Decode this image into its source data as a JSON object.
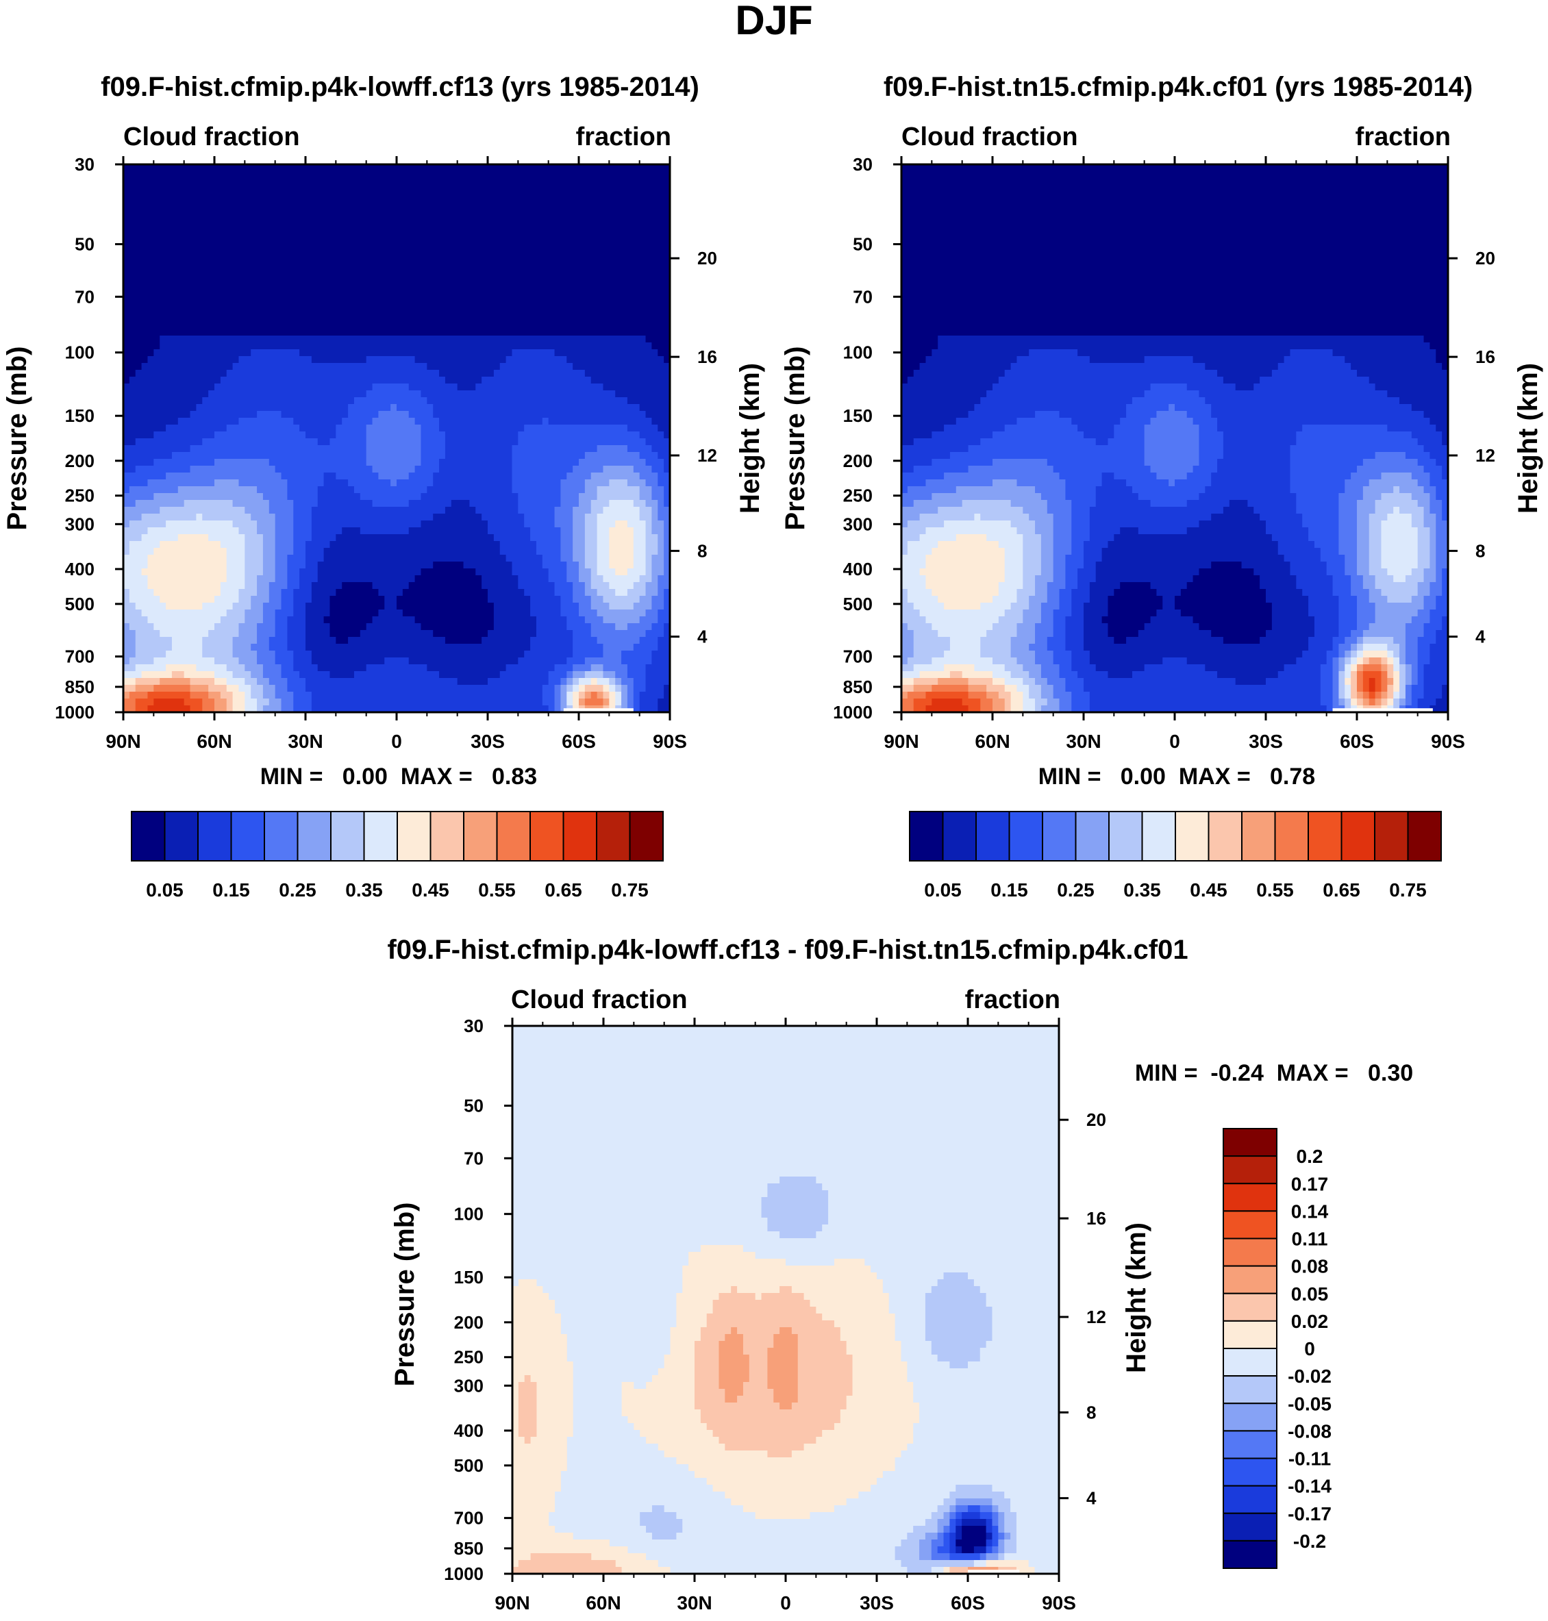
{
  "figure": {
    "title": "DJF"
  },
  "palettes": {
    "abs": [
      "#00007f",
      "#0a1fb4",
      "#1a3bdc",
      "#2d55f0",
      "#5478f5",
      "#86a2f5",
      "#b4c8f9",
      "#dce9fc",
      "#fdebd8",
      "#fbc6ad",
      "#f7a079",
      "#f47a4c",
      "#ef5322",
      "#e0330e",
      "#b5200a",
      "#7e0000"
    ],
    "diff": [
      "#00007f",
      "#0a1fb4",
      "#1a3bdc",
      "#2d55f0",
      "#5478f5",
      "#86a2f5",
      "#b4c8f9",
      "#dce9fc",
      "#fdebd8",
      "#fbc6ad",
      "#f7a079",
      "#f47a4c",
      "#ef5322",
      "#e0330e",
      "#b5200a",
      "#7e0000"
    ]
  },
  "panels": [
    {
      "title": "f09.F-hist.cfmip.p4k-lowff.cf13 (yrs 1985-2014)",
      "left_label": "Cloud fraction",
      "right_label": "fraction",
      "stats": "MIN =   0.00  MAX =   0.83",
      "ylabel_left": "Pressure (mb)",
      "ylabel_right": "Height (km)",
      "colorbar_labels": [
        "0.05",
        "0.15",
        "0.25",
        "0.35",
        "0.45",
        "0.55",
        "0.65",
        "0.75"
      ]
    },
    {
      "title": "f09.F-hist.tn15.cfmip.p4k.cf01 (yrs 1985-2014)",
      "left_label": "Cloud fraction",
      "right_label": "fraction",
      "stats": "MIN =   0.00  MAX =   0.78",
      "ylabel_left": "Pressure (mb)",
      "ylabel_right": "Height (km)",
      "colorbar_labels": [
        "0.05",
        "0.15",
        "0.25",
        "0.35",
        "0.45",
        "0.55",
        "0.65",
        "0.75"
      ]
    },
    {
      "title": "f09.F-hist.cfmip.p4k-lowff.cf13 - f09.F-hist.tn15.cfmip.p4k.cf01",
      "left_label": "Cloud fraction",
      "right_label": "fraction",
      "stats": "MIN =  -0.24  MAX =   0.30",
      "ylabel_left": "Pressure (mb)",
      "ylabel_right": "Height (km)",
      "colorbar_labels": [
        "0.2",
        "0.17",
        "0.14",
        "0.11",
        "0.08",
        "0.05",
        "0.02",
        "0",
        "-0.02",
        "-0.05",
        "-0.08",
        "-0.11",
        "-0.14",
        "-0.17",
        "-0.2"
      ]
    }
  ],
  "chart_data": [
    {
      "type": "heatmap",
      "title": "f09.F-hist.cfmip.p4k-lowff.cf13 (yrs 1985-2014)",
      "xlabel": "",
      "ylabel": "Pressure (mb)",
      "ylabel_right": "Height (km)",
      "x_ticks": [
        "90N",
        "60N",
        "30N",
        "0",
        "30S",
        "60S",
        "90S"
      ],
      "y_ticks": [
        "30",
        "50",
        "70",
        "100",
        "150",
        "200",
        "250",
        "300",
        "400",
        "500",
        "700",
        "850",
        "1000"
      ],
      "y_right_ticks": [
        "20",
        "16",
        "12",
        "8",
        "4"
      ],
      "min": 0.0,
      "max": 0.83,
      "levels": [
        0.05,
        0.1,
        0.15,
        0.2,
        0.25,
        0.3,
        0.35,
        0.4,
        0.45,
        0.5,
        0.55,
        0.6,
        0.65,
        0.7,
        0.75
      ]
    },
    {
      "type": "heatmap",
      "title": "f09.F-hist.tn15.cfmip.p4k.cf01 (yrs 1985-2014)",
      "xlabel": "",
      "ylabel": "Pressure (mb)",
      "ylabel_right": "Height (km)",
      "x_ticks": [
        "90N",
        "60N",
        "30N",
        "0",
        "30S",
        "60S",
        "90S"
      ],
      "y_ticks": [
        "30",
        "50",
        "70",
        "100",
        "150",
        "200",
        "250",
        "300",
        "400",
        "500",
        "700",
        "850",
        "1000"
      ],
      "y_right_ticks": [
        "20",
        "16",
        "12",
        "8",
        "4"
      ],
      "min": 0.0,
      "max": 0.78,
      "levels": [
        0.05,
        0.1,
        0.15,
        0.2,
        0.25,
        0.3,
        0.35,
        0.4,
        0.45,
        0.5,
        0.55,
        0.6,
        0.65,
        0.7,
        0.75
      ]
    },
    {
      "type": "heatmap",
      "title": "f09.F-hist.cfmip.p4k-lowff.cf13 - f09.F-hist.tn15.cfmip.p4k.cf01",
      "xlabel": "",
      "ylabel": "Pressure (mb)",
      "ylabel_right": "Height (km)",
      "x_ticks": [
        "90N",
        "60N",
        "30N",
        "0",
        "30S",
        "60S",
        "90S"
      ],
      "y_ticks": [
        "30",
        "50",
        "70",
        "100",
        "150",
        "200",
        "250",
        "300",
        "400",
        "500",
        "700",
        "850",
        "1000"
      ],
      "y_right_ticks": [
        "20",
        "16",
        "12",
        "8",
        "4"
      ],
      "min": -0.24,
      "max": 0.3,
      "levels": [
        -0.2,
        -0.17,
        -0.14,
        -0.11,
        -0.08,
        -0.05,
        -0.02,
        0,
        0.02,
        0.05,
        0.08,
        0.11,
        0.14,
        0.17,
        0.2
      ]
    }
  ]
}
